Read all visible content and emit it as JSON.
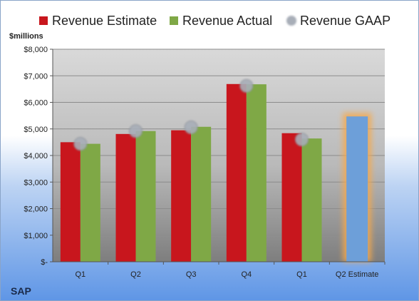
{
  "chart_data": {
    "type": "bar",
    "ticker": "SAP",
    "ylabel": "$millions",
    "ylim": [
      0,
      8000
    ],
    "yticks": [
      0,
      1000,
      2000,
      3000,
      4000,
      5000,
      6000,
      7000,
      8000
    ],
    "ytick_labels": [
      "$-",
      "$1,000",
      "$2,000",
      "$3,000",
      "$4,000",
      "$5,000",
      "$6,000",
      "$7,000",
      "$8,000"
    ],
    "categories": [
      "Q1",
      "Q2",
      "Q3",
      "Q4",
      "Q1",
      "Q2 Estimate"
    ],
    "series": [
      {
        "name": "Revenue Estimate",
        "color": "#c8161d",
        "values": [
          4500,
          4810,
          4950,
          6690,
          4840,
          null
        ]
      },
      {
        "name": "Revenue Actual",
        "color": "#7fa846",
        "values": [
          4440,
          4920,
          5080,
          6680,
          4640,
          null
        ]
      },
      {
        "name": "Revenue GAAP",
        "color": "#a8aeb8",
        "marker": "circle",
        "values": [
          4440,
          4920,
          5060,
          6620,
          4600,
          null
        ]
      }
    ],
    "estimate": {
      "category_index": 5,
      "value": 5470,
      "color": "#6d9fd9",
      "glow": "#f5a94d"
    },
    "grid": true,
    "legend_position": "top"
  }
}
